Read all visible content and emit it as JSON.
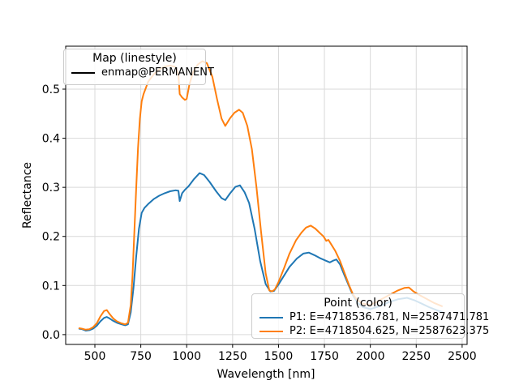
{
  "window": {
    "background": "#ffffff"
  },
  "chart_data": {
    "type": "line",
    "title": "",
    "xlabel": "Wavelength [nm]",
    "ylabel": "Reflectance",
    "xlim": [
      341,
      2527
    ],
    "ylim": [
      -0.02,
      0.5875
    ],
    "grid": true,
    "grid_color": "#d9d9d9",
    "spine_color": "#000000",
    "tick_color": "#000000",
    "x_ticks": [
      {
        "v": 500,
        "label": "500"
      },
      {
        "v": 750,
        "label": "750"
      },
      {
        "v": 1000,
        "label": "1000"
      },
      {
        "v": 1250,
        "label": "1250"
      },
      {
        "v": 1500,
        "label": "1500"
      },
      {
        "v": 1750,
        "label": "1750"
      },
      {
        "v": 2000,
        "label": "2000"
      },
      {
        "v": 2250,
        "label": "2250"
      },
      {
        "v": 2500,
        "label": "2500"
      }
    ],
    "y_ticks": [
      {
        "v": 0.0,
        "label": "0.0"
      },
      {
        "v": 0.1,
        "label": "0.1"
      },
      {
        "v": 0.2,
        "label": "0.2"
      },
      {
        "v": 0.3,
        "label": "0.3"
      },
      {
        "v": 0.4,
        "label": "0.4"
      },
      {
        "v": 0.5,
        "label": "0.5"
      }
    ],
    "series": [
      {
        "name": "P1: E=4718536.781, N=2587471.781",
        "color": "#1f77b4",
        "points": [
          [
            415,
            0.012
          ],
          [
            430,
            0.011
          ],
          [
            450,
            0.008
          ],
          [
            470,
            0.009
          ],
          [
            490,
            0.012
          ],
          [
            510,
            0.018
          ],
          [
            530,
            0.027
          ],
          [
            550,
            0.034
          ],
          [
            565,
            0.036
          ],
          [
            580,
            0.033
          ],
          [
            600,
            0.028
          ],
          [
            620,
            0.024
          ],
          [
            645,
            0.021
          ],
          [
            665,
            0.019
          ],
          [
            680,
            0.021
          ],
          [
            695,
            0.045
          ],
          [
            710,
            0.095
          ],
          [
            725,
            0.16
          ],
          [
            740,
            0.215
          ],
          [
            755,
            0.248
          ],
          [
            770,
            0.258
          ],
          [
            790,
            0.266
          ],
          [
            820,
            0.276
          ],
          [
            850,
            0.283
          ],
          [
            880,
            0.288
          ],
          [
            910,
            0.292
          ],
          [
            940,
            0.294
          ],
          [
            955,
            0.293
          ],
          [
            962,
            0.272
          ],
          [
            975,
            0.288
          ],
          [
            990,
            0.295
          ],
          [
            1010,
            0.302
          ],
          [
            1040,
            0.317
          ],
          [
            1070,
            0.329
          ],
          [
            1095,
            0.325
          ],
          [
            1125,
            0.311
          ],
          [
            1160,
            0.292
          ],
          [
            1190,
            0.278
          ],
          [
            1210,
            0.274
          ],
          [
            1235,
            0.287
          ],
          [
            1265,
            0.301
          ],
          [
            1290,
            0.304
          ],
          [
            1315,
            0.29
          ],
          [
            1340,
            0.268
          ],
          [
            1370,
            0.215
          ],
          [
            1400,
            0.15
          ],
          [
            1430,
            0.103
          ],
          [
            1455,
            0.088
          ],
          [
            1475,
            0.089
          ],
          [
            1500,
            0.102
          ],
          [
            1530,
            0.12
          ],
          [
            1560,
            0.138
          ],
          [
            1600,
            0.155
          ],
          [
            1635,
            0.165
          ],
          [
            1665,
            0.167
          ],
          [
            1695,
            0.162
          ],
          [
            1725,
            0.156
          ],
          [
            1755,
            0.151
          ],
          [
            1780,
            0.147
          ],
          [
            1800,
            0.151
          ],
          [
            1815,
            0.153
          ],
          [
            1835,
            0.143
          ],
          [
            1860,
            0.12
          ],
          [
            1885,
            0.098
          ],
          [
            1905,
            0.08
          ],
          [
            1930,
            0.065
          ],
          [
            1960,
            0.056
          ],
          [
            2000,
            0.052
          ],
          [
            2050,
            0.058
          ],
          [
            2100,
            0.066
          ],
          [
            2150,
            0.072
          ],
          [
            2200,
            0.075
          ],
          [
            2240,
            0.07
          ],
          [
            2280,
            0.063
          ],
          [
            2320,
            0.056
          ],
          [
            2360,
            0.05
          ],
          [
            2390,
            0.046
          ]
        ]
      },
      {
        "name": "P2: E=4718504.625, N=2587623.375",
        "color": "#ff7f0e",
        "points": [
          [
            415,
            0.013
          ],
          [
            430,
            0.012
          ],
          [
            450,
            0.01
          ],
          [
            470,
            0.011
          ],
          [
            490,
            0.015
          ],
          [
            510,
            0.023
          ],
          [
            530,
            0.037
          ],
          [
            550,
            0.048
          ],
          [
            565,
            0.05
          ],
          [
            580,
            0.042
          ],
          [
            600,
            0.033
          ],
          [
            620,
            0.027
          ],
          [
            645,
            0.023
          ],
          [
            665,
            0.021
          ],
          [
            680,
            0.024
          ],
          [
            695,
            0.06
          ],
          [
            705,
            0.12
          ],
          [
            715,
            0.21
          ],
          [
            725,
            0.3
          ],
          [
            735,
            0.38
          ],
          [
            745,
            0.44
          ],
          [
            755,
            0.475
          ],
          [
            765,
            0.49
          ],
          [
            775,
            0.5
          ],
          [
            790,
            0.515
          ],
          [
            820,
            0.53
          ],
          [
            850,
            0.54
          ],
          [
            880,
            0.546
          ],
          [
            910,
            0.548
          ],
          [
            940,
            0.545
          ],
          [
            955,
            0.53
          ],
          [
            962,
            0.49
          ],
          [
            975,
            0.483
          ],
          [
            990,
            0.478
          ],
          [
            1000,
            0.48
          ],
          [
            1015,
            0.51
          ],
          [
            1035,
            0.535
          ],
          [
            1060,
            0.55
          ],
          [
            1085,
            0.557
          ],
          [
            1110,
            0.553
          ],
          [
            1140,
            0.525
          ],
          [
            1165,
            0.48
          ],
          [
            1190,
            0.44
          ],
          [
            1210,
            0.425
          ],
          [
            1235,
            0.44
          ],
          [
            1260,
            0.452
          ],
          [
            1285,
            0.458
          ],
          [
            1305,
            0.452
          ],
          [
            1330,
            0.425
          ],
          [
            1355,
            0.378
          ],
          [
            1380,
            0.3
          ],
          [
            1405,
            0.21
          ],
          [
            1430,
            0.125
          ],
          [
            1450,
            0.09
          ],
          [
            1465,
            0.088
          ],
          [
            1480,
            0.092
          ],
          [
            1500,
            0.107
          ],
          [
            1530,
            0.135
          ],
          [
            1560,
            0.165
          ],
          [
            1595,
            0.192
          ],
          [
            1625,
            0.208
          ],
          [
            1650,
            0.218
          ],
          [
            1675,
            0.222
          ],
          [
            1700,
            0.216
          ],
          [
            1725,
            0.207
          ],
          [
            1745,
            0.2
          ],
          [
            1760,
            0.191
          ],
          [
            1772,
            0.193
          ],
          [
            1785,
            0.185
          ],
          [
            1810,
            0.17
          ],
          [
            1835,
            0.15
          ],
          [
            1860,
            0.125
          ],
          [
            1885,
            0.1
          ],
          [
            1905,
            0.082
          ],
          [
            1930,
            0.07
          ],
          [
            1960,
            0.063
          ],
          [
            2000,
            0.06
          ],
          [
            2050,
            0.07
          ],
          [
            2100,
            0.08
          ],
          [
            2150,
            0.09
          ],
          [
            2185,
            0.095
          ],
          [
            2210,
            0.096
          ],
          [
            2235,
            0.088
          ],
          [
            2270,
            0.08
          ],
          [
            2310,
            0.072
          ],
          [
            2350,
            0.064
          ],
          [
            2390,
            0.058
          ]
        ]
      }
    ]
  },
  "legends": {
    "map": {
      "title": "Map (linestyle)",
      "entries": [
        {
          "label": "enmap@PERMANENT",
          "color": "#000000"
        }
      ]
    },
    "point": {
      "title": "Point (color)"
    }
  }
}
